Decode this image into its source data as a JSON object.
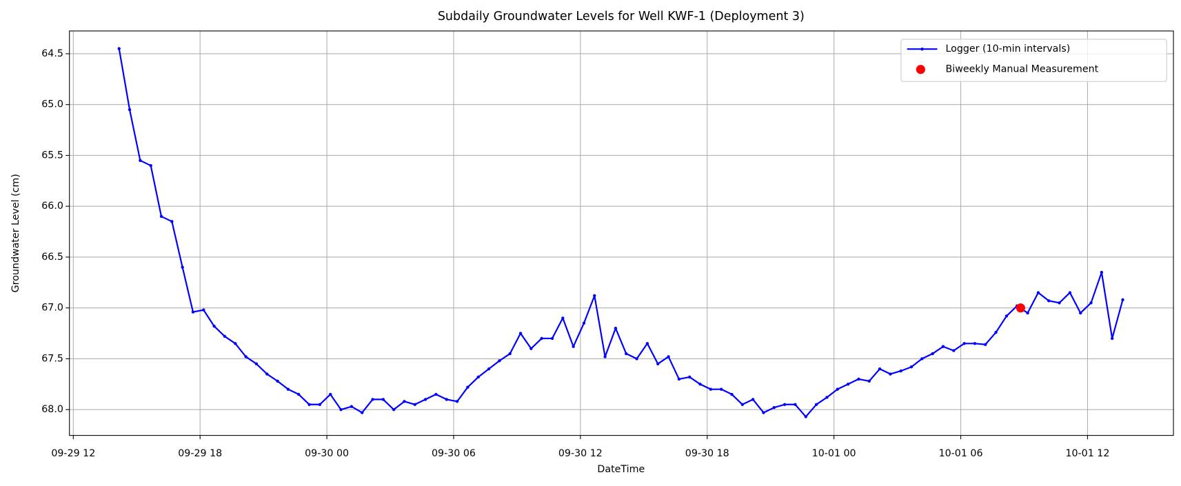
{
  "chart_data": {
    "type": "line",
    "title": "Subdaily Groundwater Levels for Well KWF-1 (Deployment 3)",
    "xlabel": "DateTime",
    "ylabel": "Groundwater Level (cm)",
    "x": [
      "09-29 14:10",
      "09-29 14:40",
      "09-29 15:10",
      "09-29 15:40",
      "09-29 16:10",
      "09-29 16:40",
      "09-29 17:10",
      "09-29 17:40",
      "09-29 18:10",
      "09-29 18:40",
      "09-29 19:10",
      "09-29 19:40",
      "09-29 20:10",
      "09-29 20:40",
      "09-29 21:10",
      "09-29 21:40",
      "09-29 22:10",
      "09-29 22:40",
      "09-29 23:10",
      "09-29 23:40",
      "09-30 00:10",
      "09-30 00:40",
      "09-30 01:10",
      "09-30 01:40",
      "09-30 02:10",
      "09-30 02:40",
      "09-30 03:10",
      "09-30 03:40",
      "09-30 04:10",
      "09-30 04:40",
      "09-30 05:10",
      "09-30 05:40",
      "09-30 06:10",
      "09-30 06:40",
      "09-30 07:10",
      "09-30 07:40",
      "09-30 08:10",
      "09-30 08:40",
      "09-30 09:10",
      "09-30 09:40",
      "09-30 10:10",
      "09-30 10:40",
      "09-30 11:10",
      "09-30 11:40",
      "09-30 12:10",
      "09-30 12:40",
      "09-30 13:10",
      "09-30 13:40",
      "09-30 14:10",
      "09-30 14:40",
      "09-30 15:10",
      "09-30 15:40",
      "09-30 16:10",
      "09-30 16:40",
      "09-30 17:10",
      "09-30 17:40",
      "09-30 18:10",
      "09-30 18:40",
      "09-30 19:10",
      "09-30 19:40",
      "09-30 20:10",
      "09-30 20:40",
      "09-30 21:10",
      "09-30 21:40",
      "09-30 22:10",
      "09-30 22:40",
      "09-30 23:10",
      "09-30 23:40",
      "10-01 00:10",
      "10-01 00:40",
      "10-01 01:10",
      "10-01 01:40",
      "10-01 02:10",
      "10-01 02:40",
      "10-01 03:10",
      "10-01 03:40",
      "10-01 04:10",
      "10-01 04:40",
      "10-01 05:10",
      "10-01 05:40",
      "10-01 06:10",
      "10-01 06:40",
      "10-01 07:10",
      "10-01 07:40",
      "10-01 08:10",
      "10-01 08:40",
      "10-01 09:10",
      "10-01 09:40",
      "10-01 10:10",
      "10-01 10:40",
      "10-01 11:10",
      "10-01 11:40",
      "10-01 12:10",
      "10-01 12:40",
      "10-01 13:10",
      "10-01 13:40"
    ],
    "series": [
      {
        "name": "Logger (10-min intervals)",
        "color": "#0000ff",
        "marker": true,
        "values": [
          64.45,
          65.05,
          65.55,
          65.6,
          66.1,
          66.15,
          66.6,
          67.04,
          67.02,
          67.18,
          67.28,
          67.35,
          67.48,
          67.55,
          67.65,
          67.72,
          67.8,
          67.85,
          67.95,
          67.95,
          67.85,
          68.0,
          67.97,
          68.03,
          67.9,
          67.9,
          68.0,
          67.92,
          67.95,
          67.9,
          67.85,
          67.9,
          67.92,
          67.78,
          67.68,
          67.6,
          67.52,
          67.45,
          67.25,
          67.4,
          67.3,
          67.3,
          67.1,
          67.38,
          67.15,
          66.88,
          67.48,
          67.2,
          67.45,
          67.5,
          67.35,
          67.55,
          67.48,
          67.7,
          67.68,
          67.75,
          67.8,
          67.8,
          67.85,
          67.95,
          67.9,
          68.03,
          67.98,
          67.95,
          67.95,
          68.07,
          67.95,
          67.88,
          67.8,
          67.75,
          67.7,
          67.72,
          67.6,
          67.65,
          67.62,
          67.58,
          67.5,
          67.45,
          67.38,
          67.42,
          67.35,
          67.35,
          67.36,
          67.24,
          67.08,
          66.98,
          67.05,
          66.85,
          66.93,
          66.95,
          66.85,
          67.05,
          66.95,
          66.65,
          67.3,
          66.92
        ]
      },
      {
        "name": "Biweekly Manual Measurement",
        "type": "scatter",
        "color": "#ff0000",
        "x": [
          "10-01 08:50"
        ],
        "values": [
          67.0
        ]
      }
    ],
    "xlim": [
      "09-29 11:49",
      "10-01 16:04"
    ],
    "xticks": [
      "09-29 12",
      "09-29 18",
      "09-30 00",
      "09-30 06",
      "09-30 12",
      "09-30 18",
      "10-01 00",
      "10-01 06",
      "10-01 12"
    ],
    "ylim": [
      68.254,
      64.276
    ],
    "yticks": [
      64.5,
      {
        "value": 65,
        "label": "65.0"
      },
      65.5,
      {
        "value": 66,
        "label": "66.0"
      },
      66.5,
      {
        "value": 67,
        "label": "67.0"
      },
      67.5,
      {
        "value": 68,
        "label": "68.0"
      }
    ],
    "grid": true,
    "legend": "upper right"
  }
}
